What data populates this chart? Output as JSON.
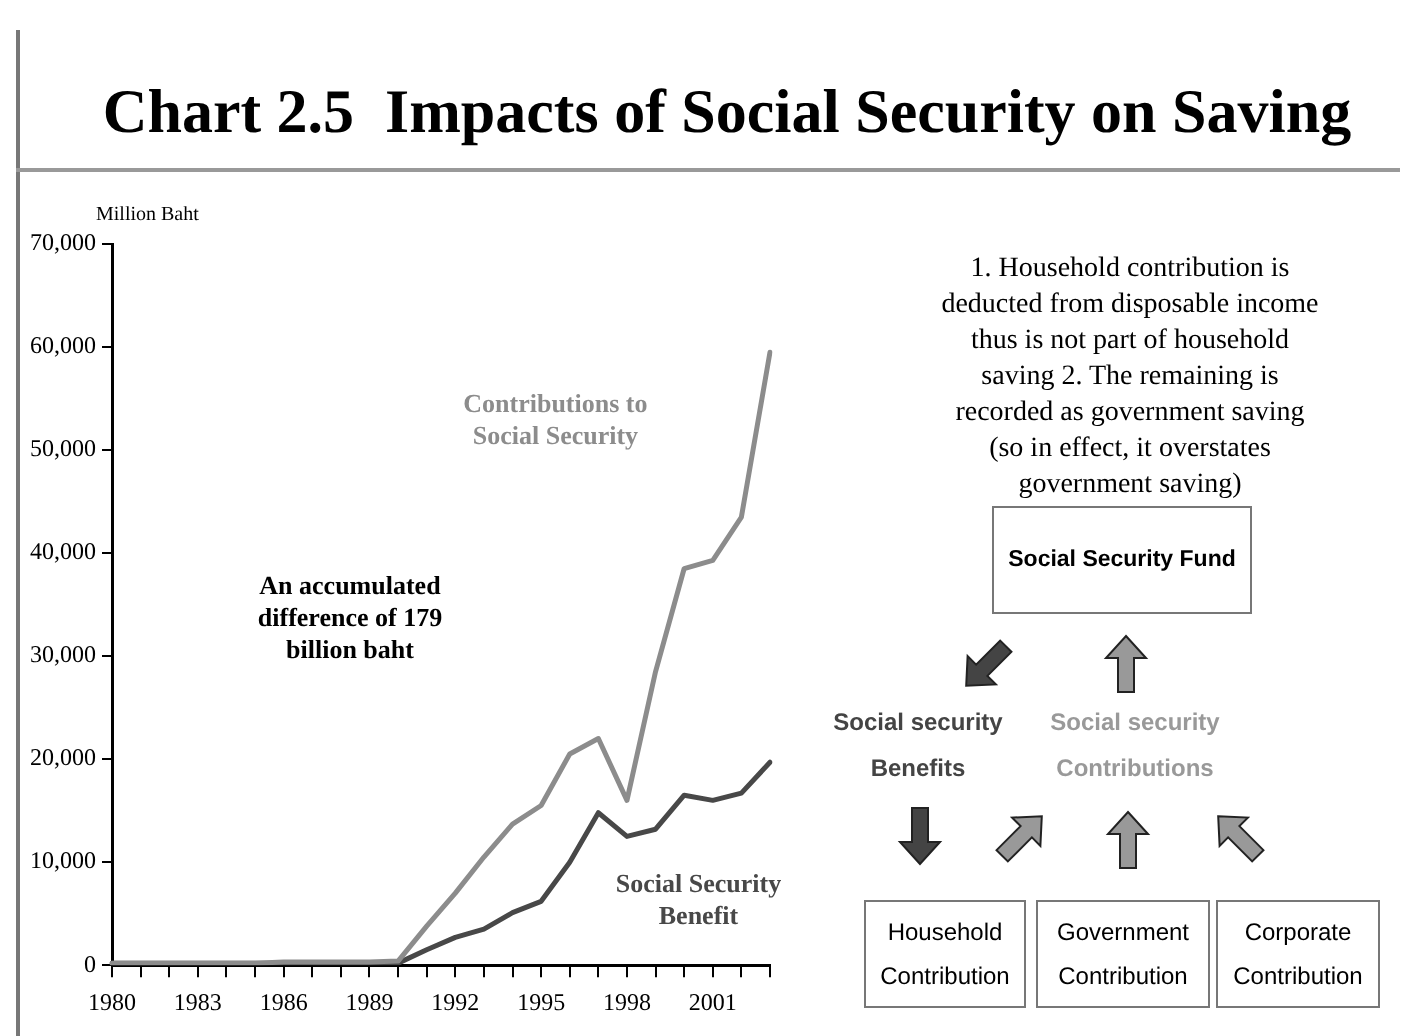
{
  "chart_data": {
    "type": "line",
    "title": "Chart 2.5  Impacts of Social Security on Saving",
    "ylabel": "Million Baht",
    "categories": [
      "1980",
      null,
      null,
      "1983",
      null,
      null,
      "1986",
      null,
      null,
      "1989",
      null,
      null,
      "1992",
      null,
      null,
      "1995",
      null,
      null,
      "1998",
      null,
      null,
      "2001",
      null,
      null
    ],
    "series": [
      {
        "name": "Contributions to Social Security",
        "color": "#8c8c8c",
        "values": [
          200,
          200,
          200,
          200,
          200,
          200,
          300,
          300,
          300,
          300,
          400,
          3800,
          7000,
          10500,
          13700,
          15500,
          20500,
          22000,
          16000,
          28500,
          38500,
          39300,
          43500,
          59500
        ]
      },
      {
        "name": "Social Security Benefit",
        "color": "#484848",
        "values": [
          200,
          200,
          200,
          200,
          200,
          200,
          200,
          200,
          200,
          200,
          200,
          1500,
          2700,
          3500,
          5100,
          6200,
          10000,
          14800,
          12500,
          13200,
          16500,
          16000,
          16700,
          19700
        ]
      }
    ],
    "ylim": [
      0,
      70000
    ],
    "yticks": [
      0,
      {
        "value": 10000,
        "label": "10,000"
      },
      {
        "value": 20000,
        "label": "20,000"
      },
      {
        "value": 30000,
        "label": "30,000"
      },
      {
        "value": 40000,
        "label": "40,000"
      },
      {
        "value": 50000,
        "label": "50,000"
      },
      {
        "value": 60000,
        "label": "60,000"
      },
      {
        "value": 70000,
        "label": "70,000"
      }
    ],
    "grid": false,
    "legend": false,
    "marker": "none",
    "line_style": "solid",
    "annotations": [
      "An accumulated difference of 179 billion baht",
      "1. Household contribution is deducted from disposable income thus is not part of household saving 2. The remaining is recorded as government saving (so in effect, it overstates government saving)",
      "Social Security Fund",
      "Social security Benefits",
      "Social security Contributions",
      "Household Contribution",
      "Government Contribution",
      "Corporate Contribution"
    ]
  }
}
